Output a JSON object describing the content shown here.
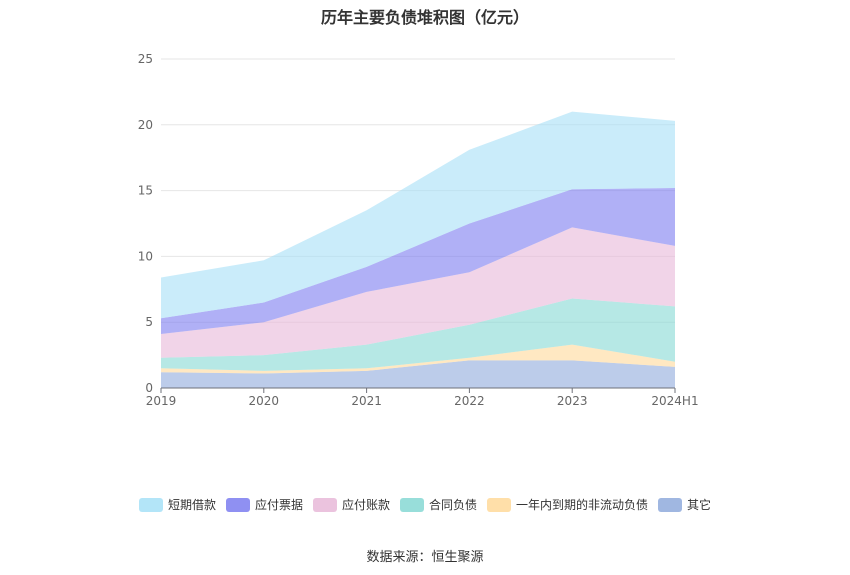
{
  "chart_data": {
    "type": "area",
    "stacked": true,
    "title": "历年主要负债堆积图（亿元）",
    "categories": [
      "2019",
      "2020",
      "2021",
      "2022",
      "2023",
      "2024H1"
    ],
    "ylim": [
      0,
      25
    ],
    "yticks": [
      0,
      5,
      10,
      15,
      20,
      25
    ],
    "grid": true,
    "legend_position": "bottom",
    "series": [
      {
        "name": "其它",
        "color": "#8faadc",
        "values": [
          1.2,
          1.1,
          1.3,
          2.1,
          2.1,
          1.6
        ]
      },
      {
        "name": "一年内到期的非流动负债",
        "color": "#ffd99a",
        "values": [
          0.3,
          0.2,
          0.2,
          0.2,
          1.2,
          0.4
        ]
      },
      {
        "name": "合同负债",
        "color": "#86d8d4",
        "values": [
          0.8,
          1.2,
          1.8,
          2.5,
          3.5,
          4.2
        ]
      },
      {
        "name": "应付账款",
        "color": "#e8b8d8",
        "values": [
          1.8,
          2.5,
          4.0,
          4.0,
          5.4,
          4.6
        ]
      },
      {
        "name": "应付票据",
        "color": "#7b7cf0",
        "values": [
          1.2,
          1.5,
          1.9,
          3.7,
          2.9,
          4.4
        ]
      },
      {
        "name": "短期借款",
        "color": "#a6e0f7",
        "values": [
          3.1,
          3.2,
          4.3,
          5.6,
          5.9,
          5.1
        ]
      }
    ]
  },
  "legend_order": [
    "短期借款",
    "应付票据",
    "应付账款",
    "合同负债",
    "一年内到期的非流动负债",
    "其它"
  ],
  "source": "数据来源：恒生聚源"
}
